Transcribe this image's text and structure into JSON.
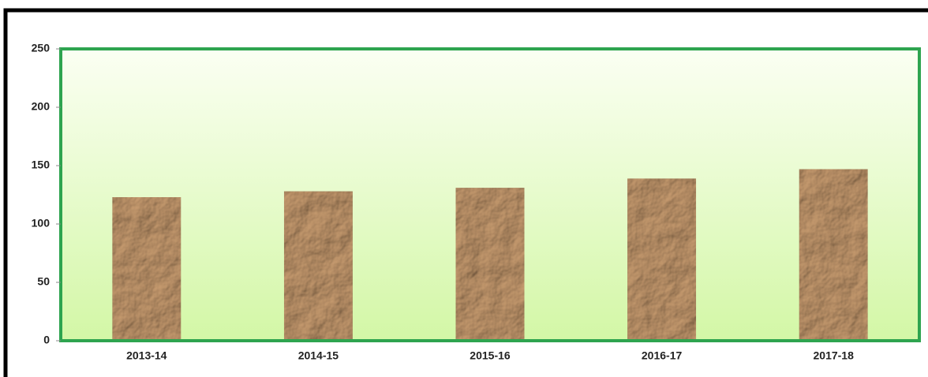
{
  "chart_data": {
    "type": "bar",
    "categories": [
      "2013-14",
      "2014-15",
      "2015-16",
      "2016-17",
      "2017-18"
    ],
    "values": [
      123,
      128,
      131,
      139,
      147
    ],
    "color": "#b48c64",
    "ylim": [
      0,
      250
    ],
    "yticks": [
      0,
      50,
      100,
      150,
      200,
      250
    ],
    "grid": false
  }
}
